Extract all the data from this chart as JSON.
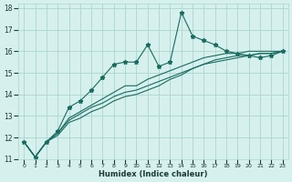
{
  "xlabel": "Humidex (Indice chaleur)",
  "ylabel": "",
  "xlim": [
    -0.5,
    23.5
  ],
  "ylim": [
    11,
    18.2
  ],
  "yticks": [
    11,
    12,
    13,
    14,
    15,
    16,
    17,
    18
  ],
  "bg_color": "#d6f0ee",
  "grid_color": "#aad6d0",
  "line_color": "#1a6b60",
  "line1_x": [
    0,
    1,
    2,
    3,
    4,
    5,
    6,
    7,
    8,
    9,
    10,
    11,
    12,
    13,
    14,
    15,
    16,
    17,
    18,
    19,
    20,
    21,
    22,
    23
  ],
  "line1_y": [
    11.8,
    11.1,
    11.8,
    12.3,
    13.4,
    13.7,
    14.2,
    14.8,
    15.4,
    15.5,
    15.5,
    16.3,
    15.3,
    15.5,
    17.8,
    16.7,
    16.5,
    16.3,
    16.0,
    15.9,
    15.8,
    15.7,
    15.8,
    16.0
  ],
  "line2_x": [
    0,
    1,
    2,
    3,
    4,
    5,
    6,
    7,
    8,
    9,
    10,
    11,
    12,
    13,
    14,
    15,
    16,
    17,
    18,
    19,
    20,
    21,
    22,
    23
  ],
  "line2_y": [
    11.8,
    11.1,
    11.8,
    12.2,
    12.9,
    13.2,
    13.5,
    13.8,
    14.1,
    14.4,
    14.4,
    14.7,
    14.9,
    15.1,
    15.3,
    15.5,
    15.7,
    15.8,
    15.9,
    15.9,
    16.0,
    16.0,
    16.0,
    16.0
  ],
  "line3_x": [
    0,
    1,
    2,
    3,
    4,
    5,
    6,
    7,
    8,
    9,
    10,
    11,
    12,
    13,
    14,
    15,
    16,
    17,
    18,
    19,
    20,
    21,
    22,
    23
  ],
  "line3_y": [
    11.8,
    11.1,
    11.8,
    12.2,
    12.8,
    13.1,
    13.4,
    13.6,
    13.9,
    14.1,
    14.2,
    14.4,
    14.6,
    14.8,
    15.0,
    15.2,
    15.4,
    15.6,
    15.7,
    15.8,
    15.8,
    15.9,
    15.9,
    16.0
  ],
  "line4_x": [
    0,
    1,
    2,
    3,
    4,
    5,
    6,
    7,
    8,
    9,
    10,
    11,
    12,
    13,
    14,
    15,
    16,
    17,
    18,
    19,
    20,
    21,
    22,
    23
  ],
  "line4_y": [
    11.8,
    11.1,
    11.8,
    12.1,
    12.7,
    12.9,
    13.2,
    13.4,
    13.7,
    13.9,
    14.0,
    14.2,
    14.4,
    14.7,
    14.9,
    15.2,
    15.4,
    15.5,
    15.6,
    15.7,
    15.8,
    15.9,
    15.9,
    16.0
  ]
}
